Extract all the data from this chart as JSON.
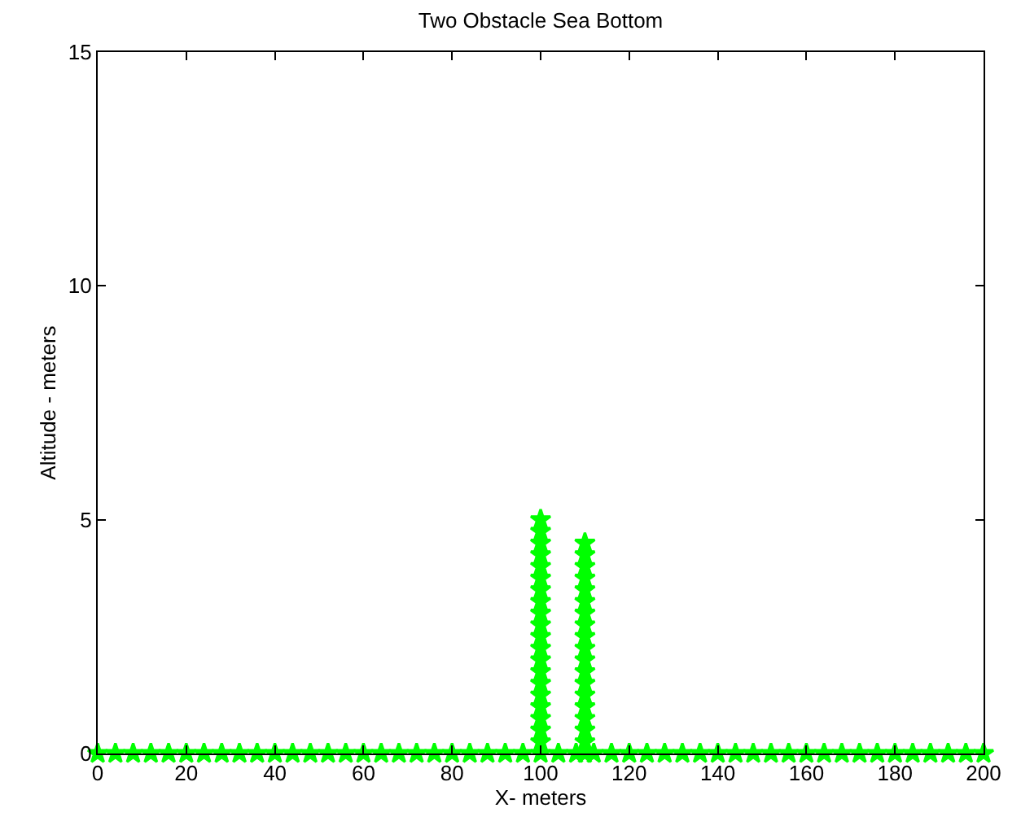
{
  "chart_data": {
    "type": "scatter",
    "title": "Two Obstacle Sea Bottom",
    "xlabel": "X- meters",
    "ylabel": "Altitude - meters",
    "xlim": [
      0,
      200
    ],
    "xticks": [
      0,
      20,
      40,
      60,
      80,
      100,
      120,
      140,
      160,
      180,
      200
    ],
    "ylim": [
      0,
      15
    ],
    "yticks": [
      0,
      5,
      10,
      15
    ],
    "marker": "star",
    "series": [
      {
        "color": "#00ff00",
        "x": [
          0,
          4,
          8,
          12,
          16,
          20,
          24,
          28,
          32,
          36,
          40,
          44,
          48,
          52,
          56,
          60,
          64,
          68,
          72,
          76,
          80,
          84,
          88,
          92,
          96,
          100,
          104,
          108,
          110,
          112,
          116,
          120,
          124,
          128,
          132,
          136,
          140,
          144,
          148,
          152,
          156,
          160,
          164,
          168,
          172,
          176,
          180,
          184,
          188,
          192,
          196,
          200,
          100,
          100,
          100,
          100,
          100,
          100,
          100,
          100,
          100,
          100,
          100,
          100,
          100,
          100,
          100,
          100,
          100,
          100,
          100,
          100,
          110,
          110,
          110,
          110,
          110,
          110,
          110,
          110,
          110,
          110,
          110,
          110,
          110,
          110,
          110,
          110,
          110,
          110
        ],
        "values": [
          0,
          0,
          0,
          0,
          0,
          0,
          0,
          0,
          0,
          0,
          0,
          0,
          0,
          0,
          0,
          0,
          0,
          0,
          0,
          0,
          0,
          0,
          0,
          0,
          0,
          0,
          0,
          0,
          0,
          0,
          0,
          0,
          0,
          0,
          0,
          0,
          0,
          0,
          0,
          0,
          0,
          0,
          0,
          0,
          0,
          0,
          0,
          0,
          0,
          0,
          0,
          0,
          0.25,
          0.5,
          0.75,
          1,
          1.25,
          1.5,
          1.75,
          2,
          2.25,
          2.5,
          2.75,
          3,
          3.25,
          3.5,
          3.75,
          4,
          4.25,
          4.5,
          4.75,
          5,
          0.25,
          0.5,
          0.75,
          1,
          1.25,
          1.5,
          1.75,
          2,
          2.25,
          2.5,
          2.75,
          3,
          3.25,
          3.5,
          3.75,
          4,
          4.25,
          4.5
        ]
      }
    ]
  }
}
